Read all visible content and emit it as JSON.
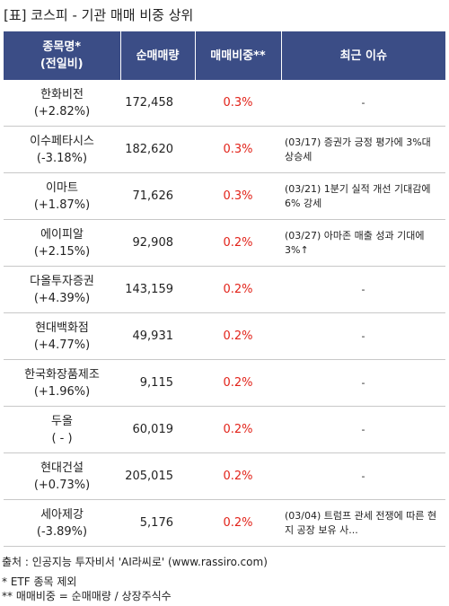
{
  "title": "[표] 코스피 - 기관 매매 비중 상위",
  "columns": {
    "name_line1": "종목명*",
    "name_line2": "(전일비)",
    "volume": "순매매량",
    "ratio": "매매비중**",
    "issue": "최근 이슈"
  },
  "rows": [
    {
      "name": "한화비전",
      "change": "(+2.82%)",
      "volume": "172,458",
      "ratio": "0.3%",
      "issue": "-"
    },
    {
      "name": "이수페타시스",
      "change": "(-3.18%)",
      "volume": "182,620",
      "ratio": "0.3%",
      "issue": "(03/17) 증권가 긍정 평가에 3%대 상승세"
    },
    {
      "name": "이마트",
      "change": "(+1.87%)",
      "volume": "71,626",
      "ratio": "0.3%",
      "issue": "(03/21) 1분기 실적 개선 기대감에 6% 강세"
    },
    {
      "name": "에이피알",
      "change": "(+2.15%)",
      "volume": "92,908",
      "ratio": "0.2%",
      "issue": "(03/27) 아마존 매출 성과 기대에 3%↑"
    },
    {
      "name": "다올투자증권",
      "change": "(+4.39%)",
      "volume": "143,159",
      "ratio": "0.2%",
      "issue": "-"
    },
    {
      "name": "현대백화점",
      "change": "(+4.77%)",
      "volume": "49,931",
      "ratio": "0.2%",
      "issue": "-"
    },
    {
      "name": "한국화장품제조",
      "change": "(+1.96%)",
      "volume": "9,115",
      "ratio": "0.2%",
      "issue": "-"
    },
    {
      "name": "두올",
      "change": "( - )",
      "volume": "60,019",
      "ratio": "0.2%",
      "issue": "-"
    },
    {
      "name": "현대건설",
      "change": "(+0.73%)",
      "volume": "205,015",
      "ratio": "0.2%",
      "issue": "-"
    },
    {
      "name": "세아제강",
      "change": "(-3.89%)",
      "volume": "5,176",
      "ratio": "0.2%",
      "issue": "(03/04) 트럼프 관세 전쟁에 따른 현지 공장 보유 사..."
    }
  ],
  "footer": {
    "source": "출처 : 인공지능 투자비서 'AI라씨로' (www.rassiro.com)",
    "note1": "* ETF 종목 제외",
    "note2": "** 매매비중 = 순매매량 / 상장주식수"
  },
  "colors": {
    "header_bg": "#3b4d86",
    "ratio_red": "#e2231a"
  }
}
